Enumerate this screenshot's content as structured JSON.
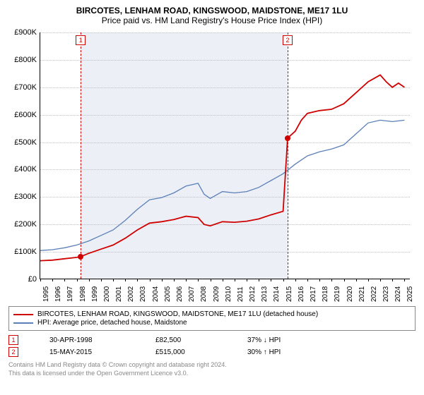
{
  "title": "BIRCOTES, LENHAM ROAD, KINGSWOOD, MAIDSTONE, ME17 1LU",
  "subtitle": "Price paid vs. HM Land Registry's House Price Index (HPI)",
  "chart": {
    "type": "line",
    "background_color": "#ffffff",
    "shaded_color": "#ecf0f6",
    "grid_color": "#c0c0c0",
    "ylim": [
      0,
      900000
    ],
    "ytick_step": 100000,
    "ylabels": [
      "£0",
      "£100K",
      "£200K",
      "£300K",
      "£400K",
      "£500K",
      "£600K",
      "£700K",
      "£800K",
      "£900K"
    ],
    "xlim": [
      1995,
      2025.5
    ],
    "xlabels": [
      "1995",
      "1996",
      "1997",
      "1998",
      "1999",
      "2000",
      "2001",
      "2002",
      "2003",
      "2004",
      "2005",
      "2006",
      "2007",
      "2008",
      "2009",
      "2010",
      "2011",
      "2012",
      "2013",
      "2014",
      "2015",
      "2016",
      "2017",
      "2018",
      "2019",
      "2020",
      "2021",
      "2022",
      "2023",
      "2024",
      "2025"
    ],
    "shaded_start": 1998.33,
    "shaded_end": 2015.37,
    "series": {
      "red": {
        "color": "#d00000",
        "width": 1.8,
        "label": "BIRCOTES, LENHAM ROAD, KINGSWOOD, MAIDSTONE, ME17 1LU (detached house)",
        "points": [
          [
            1995,
            68000
          ],
          [
            1996,
            70000
          ],
          [
            1997,
            75000
          ],
          [
            1998,
            80000
          ],
          [
            1998.33,
            82500
          ],
          [
            1999,
            95000
          ],
          [
            2000,
            110000
          ],
          [
            2001,
            125000
          ],
          [
            2002,
            150000
          ],
          [
            2003,
            180000
          ],
          [
            2004,
            205000
          ],
          [
            2005,
            210000
          ],
          [
            2006,
            218000
          ],
          [
            2007,
            230000
          ],
          [
            2008,
            225000
          ],
          [
            2008.5,
            200000
          ],
          [
            2009,
            195000
          ],
          [
            2010,
            210000
          ],
          [
            2011,
            208000
          ],
          [
            2012,
            212000
          ],
          [
            2013,
            220000
          ],
          [
            2014,
            235000
          ],
          [
            2015,
            248000
          ],
          [
            2015.37,
            515000
          ],
          [
            2016,
            540000
          ],
          [
            2016.5,
            580000
          ],
          [
            2017,
            605000
          ],
          [
            2018,
            615000
          ],
          [
            2019,
            620000
          ],
          [
            2020,
            640000
          ],
          [
            2021,
            680000
          ],
          [
            2022,
            720000
          ],
          [
            2023,
            745000
          ],
          [
            2023.5,
            720000
          ],
          [
            2024,
            700000
          ],
          [
            2024.5,
            715000
          ],
          [
            2025,
            700000
          ]
        ]
      },
      "blue": {
        "color": "#5b7fb8",
        "width": 1.3,
        "label": "HPI: Average price, detached house, Maidstone",
        "points": [
          [
            1995,
            105000
          ],
          [
            1996,
            108000
          ],
          [
            1997,
            115000
          ],
          [
            1998,
            125000
          ],
          [
            1999,
            140000
          ],
          [
            2000,
            160000
          ],
          [
            2001,
            180000
          ],
          [
            2002,
            215000
          ],
          [
            2003,
            255000
          ],
          [
            2004,
            290000
          ],
          [
            2005,
            298000
          ],
          [
            2006,
            315000
          ],
          [
            2007,
            340000
          ],
          [
            2008,
            350000
          ],
          [
            2008.5,
            310000
          ],
          [
            2009,
            295000
          ],
          [
            2010,
            320000
          ],
          [
            2011,
            315000
          ],
          [
            2012,
            320000
          ],
          [
            2013,
            335000
          ],
          [
            2014,
            360000
          ],
          [
            2015,
            385000
          ],
          [
            2016,
            420000
          ],
          [
            2017,
            450000
          ],
          [
            2018,
            465000
          ],
          [
            2019,
            475000
          ],
          [
            2020,
            490000
          ],
          [
            2021,
            530000
          ],
          [
            2022,
            570000
          ],
          [
            2023,
            580000
          ],
          [
            2024,
            575000
          ],
          [
            2025,
            580000
          ]
        ]
      }
    },
    "markers": [
      {
        "n": "1",
        "year": 1998.33,
        "value": 82500
      },
      {
        "n": "2",
        "year": 2015.37,
        "value": 515000
      }
    ]
  },
  "annotations": [
    {
      "n": "1",
      "date": "30-APR-1998",
      "price": "£82,500",
      "delta": "37% ↓ HPI"
    },
    {
      "n": "2",
      "date": "15-MAY-2015",
      "price": "£515,000",
      "delta": "30% ↑ HPI"
    }
  ],
  "footer_line1": "Contains HM Land Registry data © Crown copyright and database right 2024.",
  "footer_line2": "This data is licensed under the Open Government Licence v3.0."
}
